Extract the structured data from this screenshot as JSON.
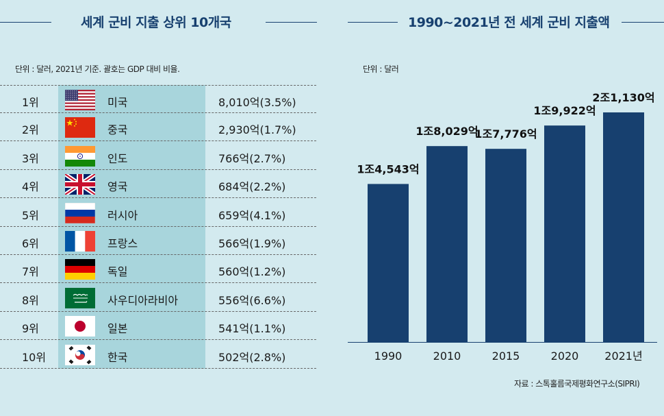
{
  "left_panel": {
    "title": "세계 군비 지출 상위 10개국",
    "unit_note": "단위 : 달러, 2021년 기준. 괄호는 GDP 대비 비율.",
    "rows": [
      {
        "rank": "1위",
        "country": "미국",
        "amount": "8,010억(3.5%)",
        "flag": "us-flag-icon"
      },
      {
        "rank": "2위",
        "country": "중국",
        "amount": "2,930억(1.7%)",
        "flag": "china-flag-icon"
      },
      {
        "rank": "3위",
        "country": "인도",
        "amount": "766억(2.7%)",
        "flag": "india-flag-icon"
      },
      {
        "rank": "4위",
        "country": "영국",
        "amount": "684억(2.2%)",
        "flag": "uk-flag-icon"
      },
      {
        "rank": "5위",
        "country": "러시아",
        "amount": "659억(4.1%)",
        "flag": "russia-flag-icon"
      },
      {
        "rank": "6위",
        "country": "프랑스",
        "amount": "566억(1.9%)",
        "flag": "france-flag-icon"
      },
      {
        "rank": "7위",
        "country": "독일",
        "amount": "560억(1.2%)",
        "flag": "germany-flag-icon"
      },
      {
        "rank": "8위",
        "country": "사우디아라비아",
        "amount": "556억(6.6%)",
        "flag": "saudi-flag-icon"
      },
      {
        "rank": "9위",
        "country": "일본",
        "amount": "541억(1.1%)",
        "flag": "japan-flag-icon"
      },
      {
        "rank": "10위",
        "country": "한국",
        "amount": "502억(2.8%)",
        "flag": "korea-flag-icon"
      }
    ]
  },
  "right_panel": {
    "title": "1990~2021년 전 세계 군비 지출액",
    "unit_note": "단위 : 달러",
    "source": "자료 : 스톡홀름국제평화연구소(SIPRI)"
  },
  "colors": {
    "background": "#d3eaef",
    "bar": "#17406f",
    "highlight": "#a8d5dc",
    "heading": "#17406f"
  },
  "chart_data": {
    "type": "bar",
    "title": "1990~2021년 전 세계 군비 지출액",
    "xlabel": "",
    "ylabel": "",
    "unit": "달러",
    "categories": [
      "1990",
      "2010",
      "2015",
      "2020",
      "2021년"
    ],
    "values": [
      14543,
      18029,
      17776,
      19922,
      21130
    ],
    "data_labels": [
      "1조4,543억",
      "1조8,029억",
      "1조7,776억",
      "1조9,922억",
      "2조1,130억"
    ],
    "value_unit": "억 달러",
    "ylim": [
      0,
      21130
    ],
    "grid": false,
    "legend": "none"
  }
}
